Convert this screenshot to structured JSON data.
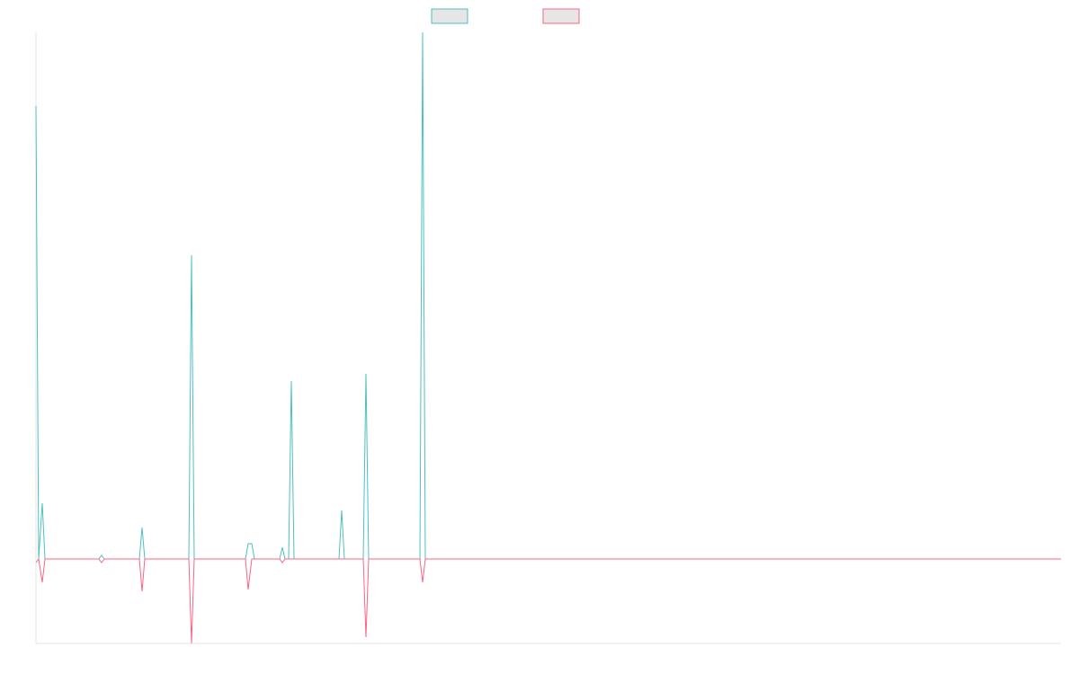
{
  "chart_data": {
    "type": "line",
    "x": [
      0,
      3,
      7,
      10,
      70,
      73,
      76,
      115,
      118,
      121,
      170,
      173,
      176,
      233,
      236,
      240,
      243,
      271,
      274,
      277,
      281,
      284,
      287,
      337,
      340,
      343,
      364,
      367,
      370,
      427,
      430,
      433,
      1140
    ],
    "series": [
      {
        "color": "#4bc0c0",
        "values": [
          504,
          0,
          62,
          0,
          0,
          4,
          0,
          0,
          35,
          0,
          0,
          338,
          0,
          0,
          17,
          17,
          0,
          0,
          13,
          0,
          0,
          198,
          0,
          0,
          54,
          0,
          0,
          206,
          0,
          0,
          586,
          0,
          0
        ]
      },
      {
        "color": "#ff6384",
        "values": [
          -4,
          0,
          -26,
          0,
          0,
          -4,
          0,
          0,
          -36,
          0,
          0,
          -94,
          0,
          0,
          -34,
          0,
          0,
          0,
          -4,
          0,
          0,
          0,
          0,
          0,
          0,
          0,
          0,
          -87,
          0,
          0,
          -26,
          0,
          0
        ]
      }
    ],
    "xlim": [
      0,
      1140
    ],
    "ylim": [
      -94,
      586
    ]
  }
}
